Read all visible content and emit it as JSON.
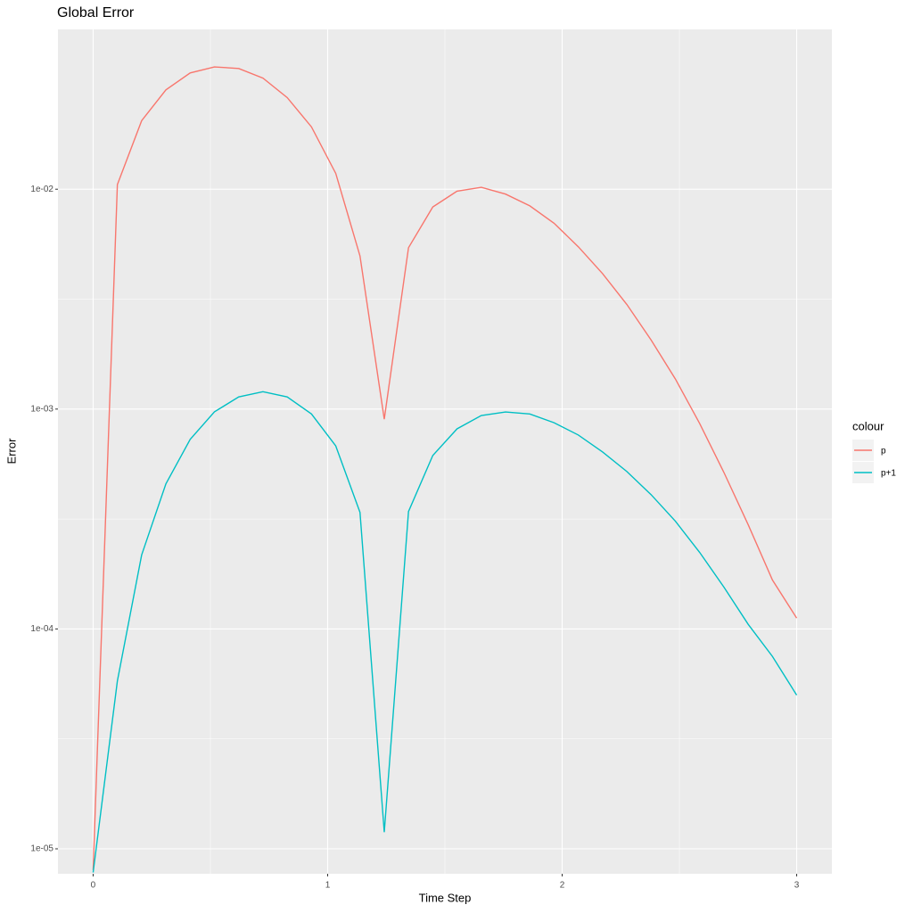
{
  "chart_data": {
    "type": "line",
    "title": "Global Error",
    "x_label": "Time Step",
    "y_label": "Error",
    "legend_title": "colour",
    "ylog": true,
    "grid": true,
    "x": [
      0,
      0.1034,
      0.2069,
      0.3103,
      0.4138,
      0.5172,
      0.6207,
      0.7241,
      0.8276,
      0.931,
      1.0345,
      1.1379,
      1.2414,
      1.3448,
      1.4483,
      1.5517,
      1.6552,
      1.7586,
      1.8621,
      1.9655,
      2.069,
      2.1724,
      2.2759,
      2.3793,
      2.4828,
      2.5862,
      2.6897,
      2.7931,
      2.8966,
      3
    ],
    "series": [
      {
        "name": "p",
        "color": "#F8766D",
        "values": [
          8e-06,
          0.0105,
          0.0205,
          0.0283,
          0.0338,
          0.036,
          0.0354,
          0.032,
          0.0261,
          0.0192,
          0.0118,
          0.00497,
          0.0009,
          0.00542,
          0.0083,
          0.0098,
          0.0102,
          0.0095,
          0.0084,
          0.007,
          0.00547,
          0.00413,
          0.00299,
          0.00206,
          0.00137,
          0.00086,
          0.000515,
          0.000298,
          0.000167,
          0.000112
        ]
      },
      {
        "name": "p+1",
        "color": "#00BFC4",
        "values": [
          7.8e-06,
          5.8e-05,
          0.000217,
          0.000457,
          0.000728,
          0.000971,
          0.001136,
          0.0012,
          0.001136,
          0.00095,
          0.00068,
          0.000339,
          1.19e-05,
          0.000342,
          0.000615,
          0.000813,
          0.000935,
          0.00097,
          0.00095,
          0.000867,
          0.000762,
          0.000638,
          0.00052,
          0.000408,
          0.000309,
          0.000223,
          0.000155,
          0.000105,
          7.5e-05,
          5e-05
        ]
      }
    ],
    "xlim": [
      -0.15,
      3.15
    ],
    "xticks": [
      0,
      1,
      2,
      3
    ],
    "ylim": [
      7.7e-06,
      0.0533
    ],
    "yticks": [
      {
        "value": 1e-05,
        "label": "1e-05"
      },
      {
        "value": 0.0001,
        "label": "1e-04"
      },
      {
        "value": 0.001,
        "label": "1e-03"
      },
      {
        "value": 0.01,
        "label": "1e-02"
      }
    ]
  }
}
